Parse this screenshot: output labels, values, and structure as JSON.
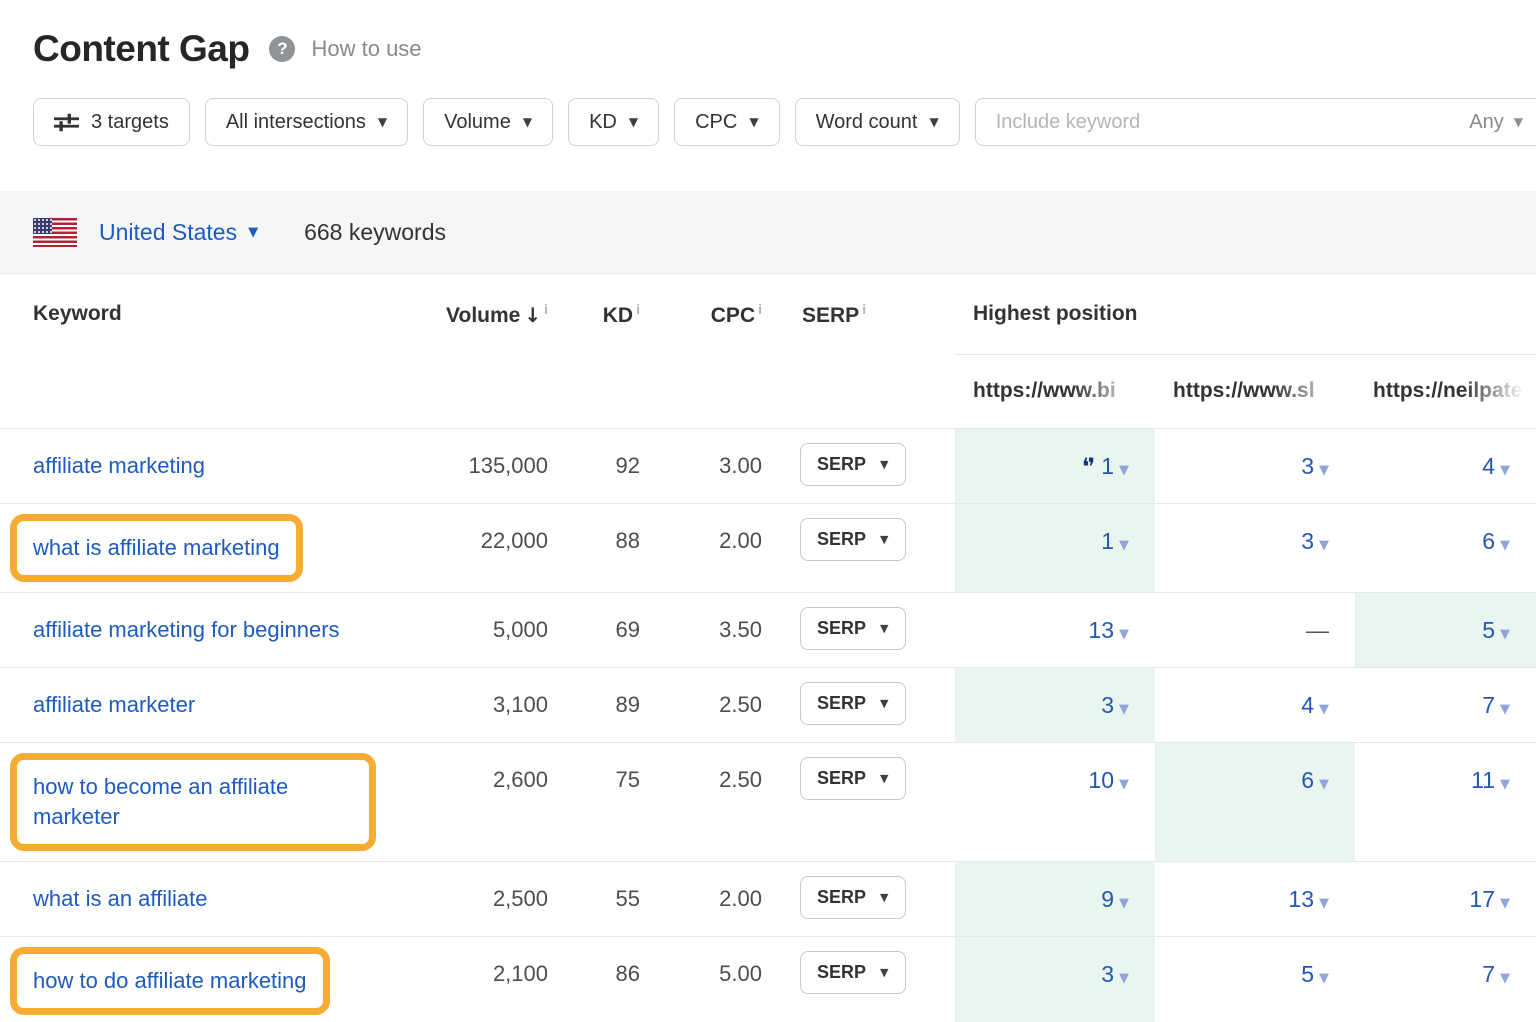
{
  "page": {
    "title": "Content Gap",
    "help_icon_glyph": "?",
    "help_link": "How to use"
  },
  "toolbar": {
    "targets_button": "3 targets",
    "intersections_button": "All intersections",
    "volume_filter": "Volume",
    "kd_filter": "KD",
    "cpc_filter": "CPC",
    "word_count_filter": "Word count",
    "include_keyword_placeholder": "Include keyword",
    "include_keyword_mode": "Any"
  },
  "country_bar": {
    "country": "United States",
    "keyword_count": "668 keywords"
  },
  "table": {
    "columns": {
      "keyword": "Keyword",
      "volume": "Volume",
      "kd": "KD",
      "cpc": "CPC",
      "serp": "SERP",
      "highest_position": "Highest position"
    },
    "sort_arrow": "↓",
    "info_superscript": "i",
    "url_columns": [
      "https://www.bi",
      "https://www.sl",
      "https://neilpate"
    ],
    "serp_button_label": "SERP",
    "no_position": "—",
    "rows": [
      {
        "keyword": "affiliate marketing",
        "highlighted": false,
        "volume": "135,000",
        "kd": "92",
        "cpc": "3.00",
        "positions": [
          {
            "value": "1",
            "best": true,
            "quote": true
          },
          {
            "value": "3"
          },
          {
            "value": "4"
          }
        ]
      },
      {
        "keyword": "what is affiliate marketing",
        "highlighted": true,
        "volume": "22,000",
        "kd": "88",
        "cpc": "2.00",
        "positions": [
          {
            "value": "1",
            "best": true
          },
          {
            "value": "3"
          },
          {
            "value": "6"
          }
        ]
      },
      {
        "keyword": "affiliate marketing for beginners",
        "highlighted": false,
        "volume": "5,000",
        "kd": "69",
        "cpc": "3.50",
        "positions": [
          {
            "value": "13"
          },
          {
            "value": null
          },
          {
            "value": "5",
            "best": true
          }
        ]
      },
      {
        "keyword": "affiliate marketer",
        "highlighted": false,
        "volume": "3,100",
        "kd": "89",
        "cpc": "2.50",
        "positions": [
          {
            "value": "3",
            "best": true
          },
          {
            "value": "4"
          },
          {
            "value": "7"
          }
        ]
      },
      {
        "keyword": "how to become an affiliate marketer",
        "highlighted": true,
        "volume": "2,600",
        "kd": "75",
        "cpc": "2.50",
        "positions": [
          {
            "value": "10"
          },
          {
            "value": "6",
            "best": true
          },
          {
            "value": "11"
          }
        ]
      },
      {
        "keyword": "what is an affiliate",
        "highlighted": false,
        "volume": "2,500",
        "kd": "55",
        "cpc": "2.00",
        "positions": [
          {
            "value": "9",
            "best": true
          },
          {
            "value": "13"
          },
          {
            "value": "17"
          }
        ]
      },
      {
        "keyword": "how to do affiliate marketing",
        "highlighted": true,
        "volume": "2,100",
        "kd": "86",
        "cpc": "5.00",
        "positions": [
          {
            "value": "3",
            "best": true
          },
          {
            "value": "5"
          },
          {
            "value": "7"
          }
        ]
      }
    ],
    "partial_row_best_column": 1
  },
  "icons": {
    "caret_down": "▼",
    "quote": "❛❜",
    "flag": "us-flag",
    "sliders": "sliders-icon",
    "question": "question-icon"
  },
  "colors": {
    "accent_blue": "#1e5bbf",
    "green_highlight": "#e9f6ef",
    "annotation_orange": "#f6ac32",
    "quote_navy": "#16367e",
    "caret_light_blue": "#92a5da"
  }
}
